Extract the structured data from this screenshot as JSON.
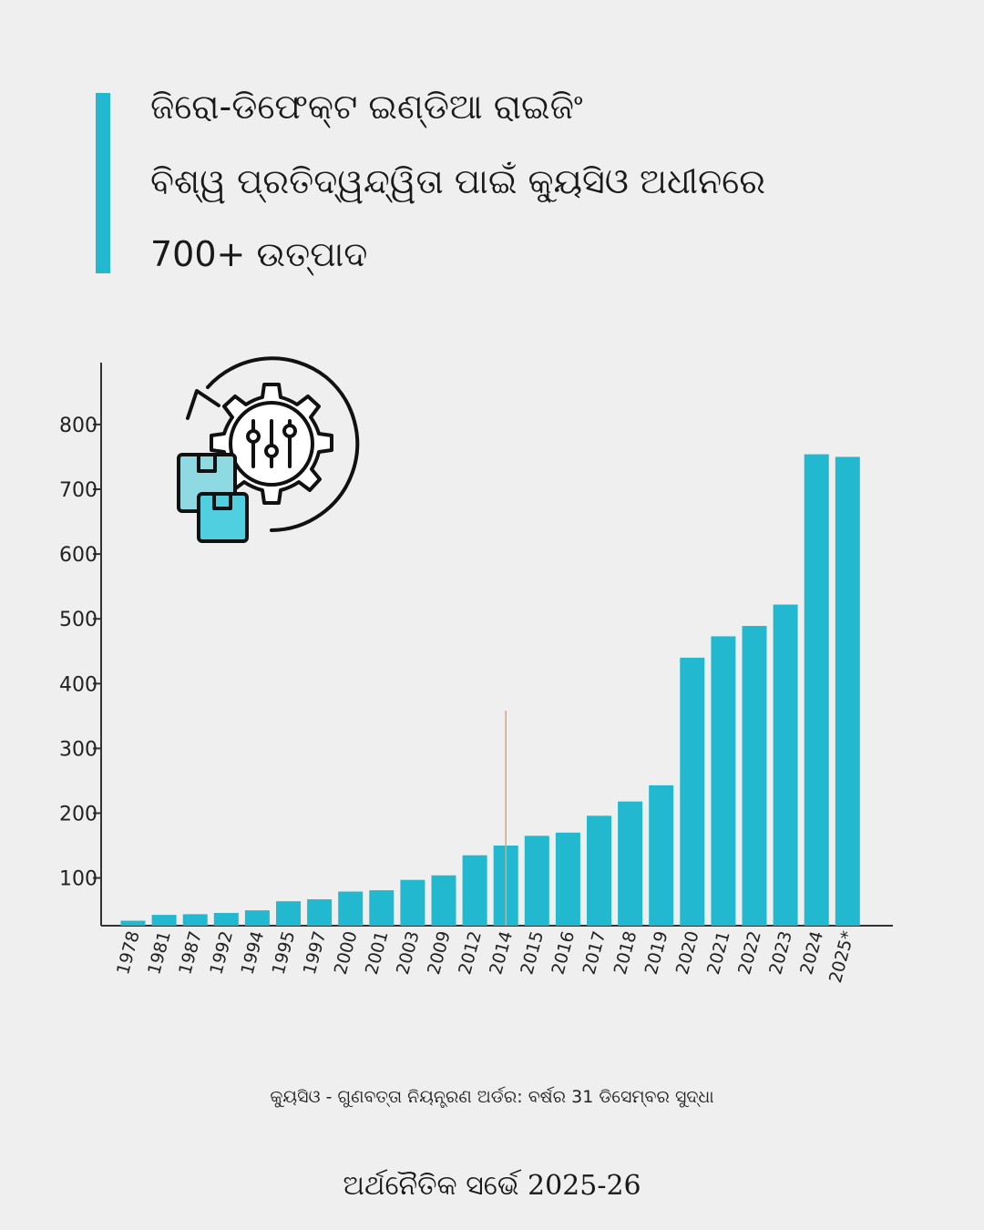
{
  "header": {
    "line1": "ଜିରୋ-ଡିଫେକ୍ଟ ଇଣ୍ଡିଆ ରାଇଜିଂ",
    "line2": "ବିଶ୍ୱ ପ୍ରତିଦ୍ୱନ୍ଦ୍ୱିତା ପାଇଁ କ୍ୟୁସିଓ ଅଧୀନରେ",
    "line3": "700+ ଉତ୍ପାଦ"
  },
  "colors": {
    "accent": "#22b8cf",
    "bar": "#22b8cf",
    "marker_line": "#e2a27a",
    "axis": "#333333"
  },
  "icon": "gear-with-boxes-icon",
  "chart_data": {
    "type": "bar",
    "title": "",
    "xlabel": "",
    "ylabel": "",
    "categories": [
      "1978",
      "1981",
      "1987",
      "1992",
      "1994",
      "1995",
      "1997",
      "2000",
      "2001",
      "2003",
      "2009",
      "2012",
      "2014",
      "2015",
      "2016",
      "2017",
      "2018",
      "2019",
      "2020",
      "2021",
      "2022",
      "2023",
      "2024",
      "2025*"
    ],
    "values": [
      34,
      43,
      44,
      46,
      50,
      64,
      67,
      79,
      81,
      97,
      104,
      135,
      150,
      165,
      170,
      196,
      218,
      243,
      440,
      473,
      489,
      522,
      754,
      750
    ],
    "y_ticks": [
      100,
      200,
      300,
      400,
      500,
      600,
      700,
      800
    ],
    "ylim": [
      20,
      900
    ],
    "marker_category": "2014",
    "grid": false
  },
  "footer": {
    "note": "କ୍ୟୁସିଓ - ଗୁଣବତ୍ତା ନିୟନ୍ତ୍ରଣ ଅର୍ଡର: ବର୍ଷର 31 ଡିସେମ୍ବର ସୁଦ୍ଧା",
    "source": "ଅର୍ଥନୈତିକ ସର୍ଭେ 2025-26"
  }
}
